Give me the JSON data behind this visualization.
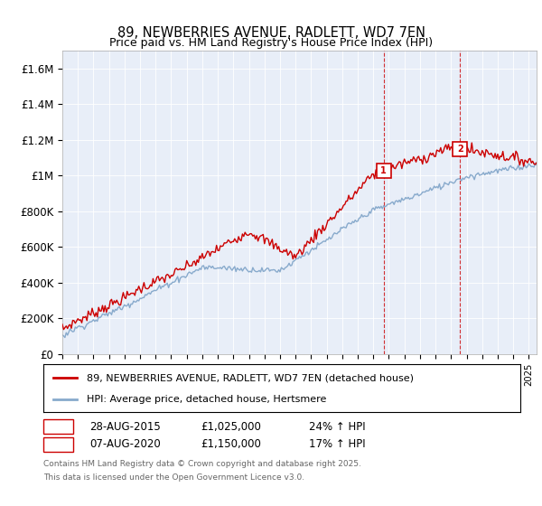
{
  "title": "89, NEWBERRIES AVENUE, RADLETT, WD7 7EN",
  "subtitle": "Price paid vs. HM Land Registry's House Price Index (HPI)",
  "ylabel_ticks": [
    "£0",
    "£200K",
    "£400K",
    "£600K",
    "£800K",
    "£1M",
    "£1.2M",
    "£1.4M",
    "£1.6M"
  ],
  "ylabel_values": [
    0,
    200000,
    400000,
    600000,
    800000,
    1000000,
    1200000,
    1400000,
    1600000
  ],
  "ylim": [
    0,
    1700000
  ],
  "xlim_start": 1995.0,
  "xlim_end": 2025.5,
  "sale1_date": 2015.66,
  "sale1_price": 1025000,
  "sale1_label": "1",
  "sale2_date": 2020.59,
  "sale2_price": 1150000,
  "sale2_label": "2",
  "property_color": "#cc0000",
  "hpi_color": "#88aacc",
  "footnote_line1": "Contains HM Land Registry data © Crown copyright and database right 2025.",
  "footnote_line2": "This data is licensed under the Open Government Licence v3.0.",
  "legend_property": "89, NEWBERRIES AVENUE, RADLETT, WD7 7EN (detached house)",
  "legend_hpi": "HPI: Average price, detached house, Hertsmere",
  "ann1_num": "1",
  "ann1_date": "28-AUG-2015",
  "ann1_price": "£1,025,000",
  "ann1_pct": "24% ↑ HPI",
  "ann2_num": "2",
  "ann2_date": "07-AUG-2020",
  "ann2_price": "£1,150,000",
  "ann2_pct": "17% ↑ HPI",
  "background_color": "#e8eef8"
}
